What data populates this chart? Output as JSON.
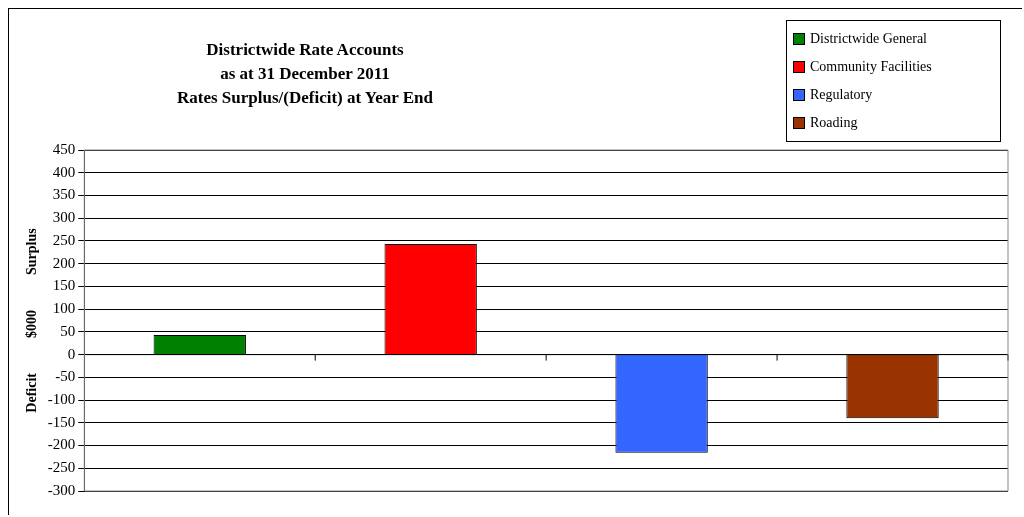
{
  "chart_data": {
    "type": "bar",
    "title": "Districtwide Rate Accounts\nas at 31 December 2011\nRates Surplus/(Deficit) at Year End",
    "ylabel": "Deficit          $000          Surplus",
    "categories": [
      null,
      null,
      null,
      null
    ],
    "series": [
      {
        "name": "Districtwide General",
        "color": "#008000",
        "values": [
          43,
          null,
          null,
          null
        ]
      },
      {
        "name": "Community Facilities",
        "color": "#ff0000",
        "values": [
          null,
          243,
          null,
          null
        ]
      },
      {
        "name": "Regulatory",
        "color": "#3366ff",
        "values": [
          null,
          null,
          -216,
          null
        ]
      },
      {
        "name": "Roading",
        "color": "#993300",
        "values": [
          null,
          null,
          null,
          -140
        ]
      }
    ],
    "ylim": [
      -300,
      450
    ],
    "yticks": [
      -300,
      -250,
      -200,
      -150,
      -100,
      -50,
      0,
      50,
      100,
      150,
      200,
      250,
      300,
      350,
      400,
      450
    ],
    "grid": "y",
    "legend": "top right"
  }
}
